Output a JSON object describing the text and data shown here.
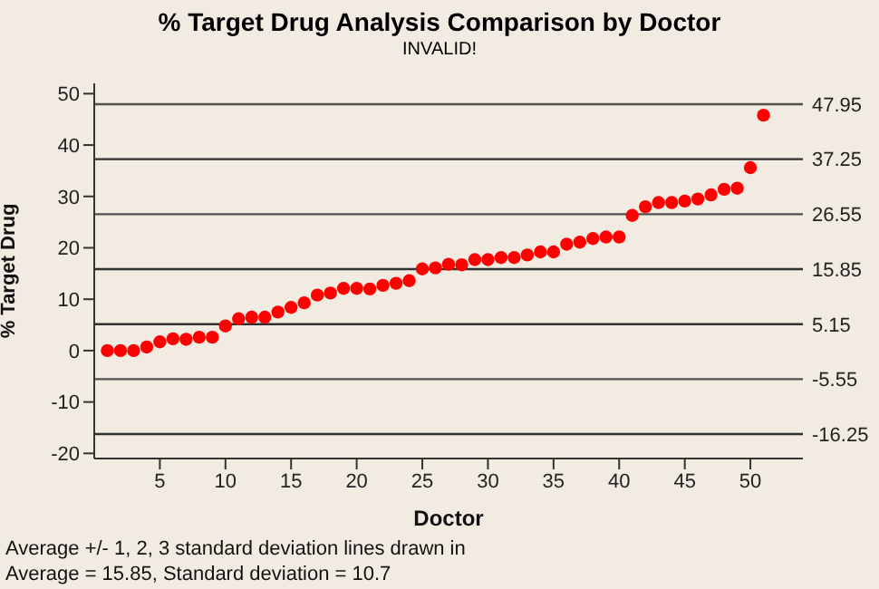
{
  "chart_data": {
    "type": "scatter",
    "title": "% Target Drug Analysis Comparison by Doctor",
    "subtitle": "INVALID!",
    "xlabel": "Doctor",
    "ylabel": "% Target Drug",
    "annotations": [
      "Average +/- 1, 2, 3 standard deviation lines drawn in",
      "Average = 15.85, Standard deviation = 10.7"
    ],
    "x": [
      1,
      2,
      3,
      4,
      5,
      6,
      7,
      8,
      9,
      10,
      11,
      12,
      13,
      14,
      15,
      16,
      17,
      18,
      19,
      20,
      21,
      22,
      23,
      24,
      25,
      26,
      27,
      28,
      29,
      30,
      31,
      32,
      33,
      34,
      35,
      36,
      37,
      38,
      39,
      40,
      41,
      42,
      43,
      44,
      45,
      46,
      47,
      48,
      49,
      50,
      51
    ],
    "series": [
      {
        "color": "#ff0000",
        "values": [
          0,
          0,
          0,
          0.7,
          1.7,
          2.3,
          2.2,
          2.6,
          2.6,
          4.8,
          6.2,
          6.5,
          6.5,
          7.5,
          8.4,
          9.3,
          10.8,
          11.2,
          12.1,
          12.1,
          12.0,
          12.7,
          13.1,
          13.6,
          15.9,
          16.1,
          16.8,
          16.7,
          17.7,
          17.7,
          18.1,
          18.1,
          18.6,
          19.2,
          19.2,
          20.7,
          21.1,
          21.8,
          22.1,
          22.1,
          26.3,
          28.0,
          28.8,
          28.8,
          29.1,
          29.5,
          30.3,
          31.4,
          31.6,
          35.6,
          45.8
        ]
      }
    ],
    "marker": "circle",
    "xlim": [
      0,
      54
    ],
    "xticks": [
      5,
      10,
      15,
      20,
      25,
      30,
      35,
      40,
      45,
      50
    ],
    "ylim": [
      -21,
      52
    ],
    "yticks": [
      -20,
      -10,
      0,
      10,
      20,
      30,
      40,
      50
    ],
    "ref_lines": [
      {
        "axis": "y",
        "value": 47.95,
        "label": "47.95",
        "color": "#505050"
      },
      {
        "axis": "y",
        "value": 37.25,
        "label": "37.25",
        "color": "#303030"
      },
      {
        "axis": "y",
        "value": 26.55,
        "label": "26.55",
        "color": "#505050"
      },
      {
        "axis": "y",
        "value": 15.85,
        "label": "15.85",
        "color": "#303030"
      },
      {
        "axis": "y",
        "value": 5.15,
        "label": "5.15",
        "color": "#303030"
      },
      {
        "axis": "y",
        "value": -5.55,
        "label": "-5.55",
        "color": "#505050"
      },
      {
        "axis": "y",
        "value": -16.25,
        "label": "-16.25",
        "color": "#303030"
      }
    ],
    "grid": false,
    "legend": false
  }
}
